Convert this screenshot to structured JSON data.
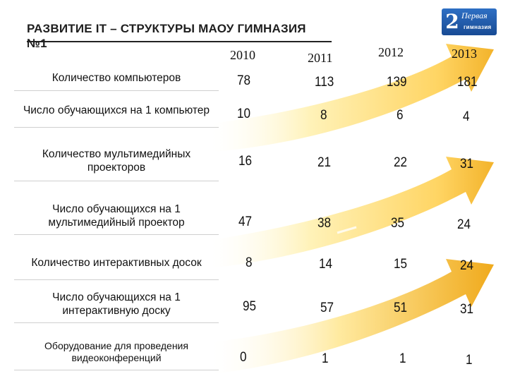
{
  "header": {
    "title": "РАЗВИТИЕ IT – СТРУКТУРЫ МАОУ ГИМНАЗИЯ №1",
    "logo": {
      "top": "Первая",
      "bottom": "гимназия",
      "mark": "2"
    }
  },
  "years": [
    "2010",
    "2011",
    "2012",
    "2013"
  ],
  "rows": [
    {
      "label": "Количество компьютеров",
      "values": [
        "78",
        "113",
        "139",
        "181"
      ]
    },
    {
      "label": "Число обучающихся на 1 компьютер",
      "values": [
        "10",
        "8",
        "6",
        "4"
      ]
    },
    {
      "label": "Количество мультимедийных проекторов",
      "values": [
        "16",
        "21",
        "22",
        "31"
      ]
    },
    {
      "label": "Число обучающихся на 1 мультимедийный проектор",
      "values": [
        "47",
        "38",
        "35",
        "24"
      ]
    },
    {
      "label": "Количество интерактивных досок",
      "values": [
        "8",
        "14",
        "15",
        "24"
      ]
    },
    {
      "label": "Число обучающихся на 1 интерактивную доску",
      "values": [
        "95",
        "57",
        "51",
        "31"
      ]
    },
    {
      "label": "Оборудование для проведения видеоконференций",
      "values": [
        "0",
        "1",
        "1",
        "1"
      ]
    }
  ],
  "colors": {
    "arrow_light": "#fff6c9",
    "arrow_mid": "#ffd867",
    "arrow_dark": "#f0b22a"
  }
}
